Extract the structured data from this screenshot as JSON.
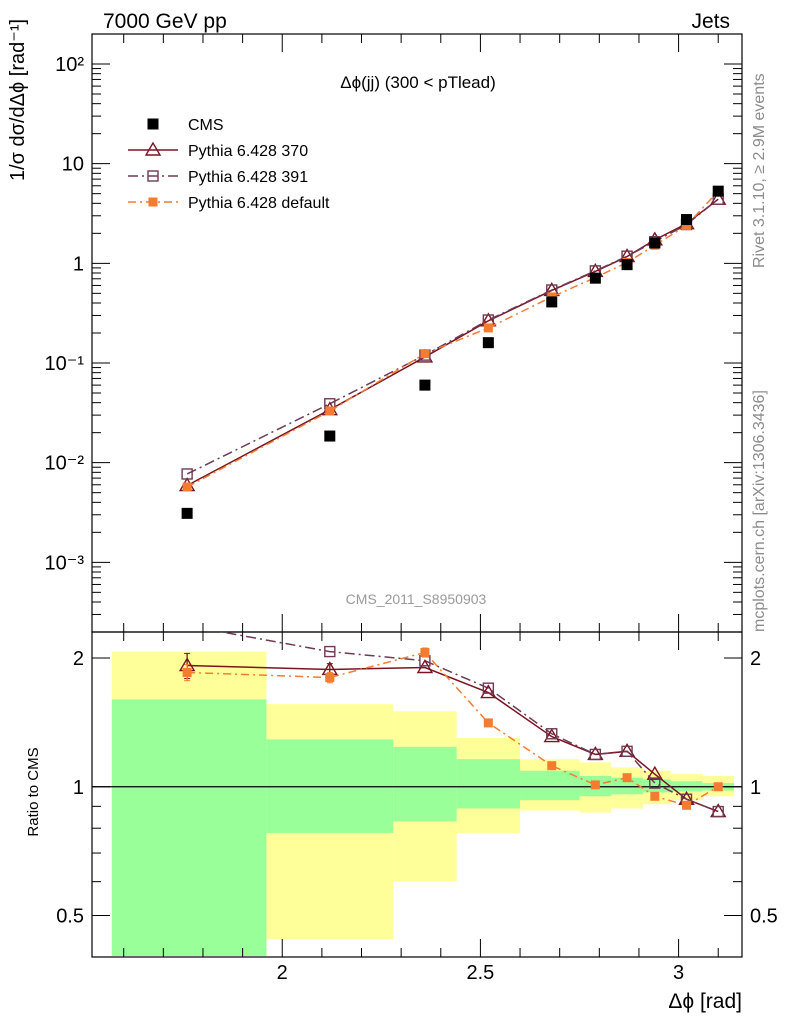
{
  "header": {
    "left": "7000 GeV pp",
    "right": "Jets"
  },
  "side_labels": {
    "rivet": "Rivet 3.1.10, ≥ 2.9M events",
    "mcplots": "mcplots.cern.ch [arXiv:1306.3436]"
  },
  "analysis_id": "CMS_2011_S8950903",
  "chart_data": {
    "type": "scatter",
    "title": "Δϕ(jj) (300 < pTlead)",
    "xlabel": "Δϕ [rad]",
    "ylabel": "1/σ dσ/dΔϕ [rad⁻¹]",
    "ratio_ylabel": "Ratio to CMS",
    "xlim": [
      1.52,
      3.16
    ],
    "ylim": [
      0.0002,
      200
    ],
    "yscale": "log",
    "ratio_ylim": [
      0.4,
      2.3
    ],
    "ratio_yscale": "log",
    "x_ticks": [
      "2",
      "2.5",
      "3"
    ],
    "y_ticks": [
      "10⁻³",
      "10⁻²",
      "10⁻¹",
      "1",
      "10",
      "10²"
    ],
    "ratio_ticks": [
      "0.5",
      "1",
      "2"
    ],
    "legend_position": "top-left",
    "x": [
      1.76,
      2.12,
      2.36,
      2.52,
      2.68,
      2.79,
      2.87,
      2.94,
      3.02,
      3.1
    ],
    "bin_edges": [
      1.57,
      1.96,
      2.28,
      2.44,
      2.6,
      2.75,
      2.83,
      2.91,
      2.98,
      3.06,
      3.14
    ],
    "series": [
      {
        "name": "CMS",
        "style": "data",
        "color": "#000000",
        "values": [
          0.0031,
          0.0185,
          0.06,
          0.16,
          0.41,
          0.71,
          0.97,
          1.6,
          2.75,
          5.3
        ]
      },
      {
        "name": "Pythia 6.428 370",
        "style": "triangle-solid",
        "color": "#7a1422",
        "values": [
          0.0059,
          0.034,
          0.115,
          0.265,
          0.535,
          0.83,
          1.17,
          1.72,
          2.5,
          4.4
        ]
      },
      {
        "name": "Pythia 6.428 391",
        "style": "square-dashdot",
        "color": "#6e3a55",
        "values": [
          0.0077,
          0.039,
          0.12,
          0.27,
          0.54,
          0.84,
          1.18,
          1.65,
          2.45,
          4.4
        ]
      },
      {
        "name": "Pythia 6.428 default",
        "style": "filled-square-dashdot",
        "color": "#f47c30",
        "values": [
          0.0057,
          0.033,
          0.124,
          0.225,
          0.46,
          0.72,
          1.02,
          1.52,
          2.4,
          5.3
        ]
      }
    ],
    "ratio_series": [
      {
        "name": "Pythia 6.428 370",
        "values": [
          1.92,
          1.88,
          1.9,
          1.66,
          1.31,
          1.19,
          1.21,
          1.07,
          0.935,
          0.875
        ]
      },
      {
        "name": "Pythia 6.428 391",
        "values": [
          2.38,
          2.07,
          1.97,
          1.7,
          1.33,
          1.19,
          1.21,
          1.02,
          0.935,
          0.875
        ]
      },
      {
        "name": "Pythia 6.428 default",
        "values": [
          1.85,
          1.8,
          2.06,
          1.41,
          1.12,
          1.01,
          1.05,
          0.95,
          0.905,
          1.0
        ]
      }
    ],
    "ratio_error_bars": [
      {
        "series": 0,
        "bin": 0,
        "err": 0.13
      },
      {
        "series": 2,
        "bin": 0,
        "err": 0.08
      },
      {
        "series": 0,
        "bin": 1,
        "err": 0.06
      },
      {
        "series": 2,
        "bin": 1,
        "err": 0.05
      },
      {
        "series": 2,
        "bin": 2,
        "err": 0.05
      }
    ],
    "uncertainty_bands": {
      "inner_color": "#99ff99",
      "outer_color": "#ffff99",
      "inner": [
        [
          0.37,
          1.6
        ],
        [
          0.78,
          1.29
        ],
        [
          0.83,
          1.24
        ],
        [
          0.89,
          1.16
        ],
        [
          0.93,
          1.09
        ],
        [
          0.95,
          1.06
        ],
        [
          0.96,
          1.05
        ],
        [
          0.97,
          1.04
        ],
        [
          0.975,
          1.03
        ],
        [
          0.98,
          1.02
        ]
      ],
      "outer": [
        [
          0.35,
          2.07
        ],
        [
          0.44,
          1.56
        ],
        [
          0.6,
          1.5
        ],
        [
          0.78,
          1.3
        ],
        [
          0.88,
          1.16
        ],
        [
          0.87,
          1.14
        ],
        [
          0.89,
          1.11
        ],
        [
          0.91,
          1.09
        ],
        [
          0.93,
          1.07
        ],
        [
          0.95,
          1.06
        ]
      ]
    }
  }
}
